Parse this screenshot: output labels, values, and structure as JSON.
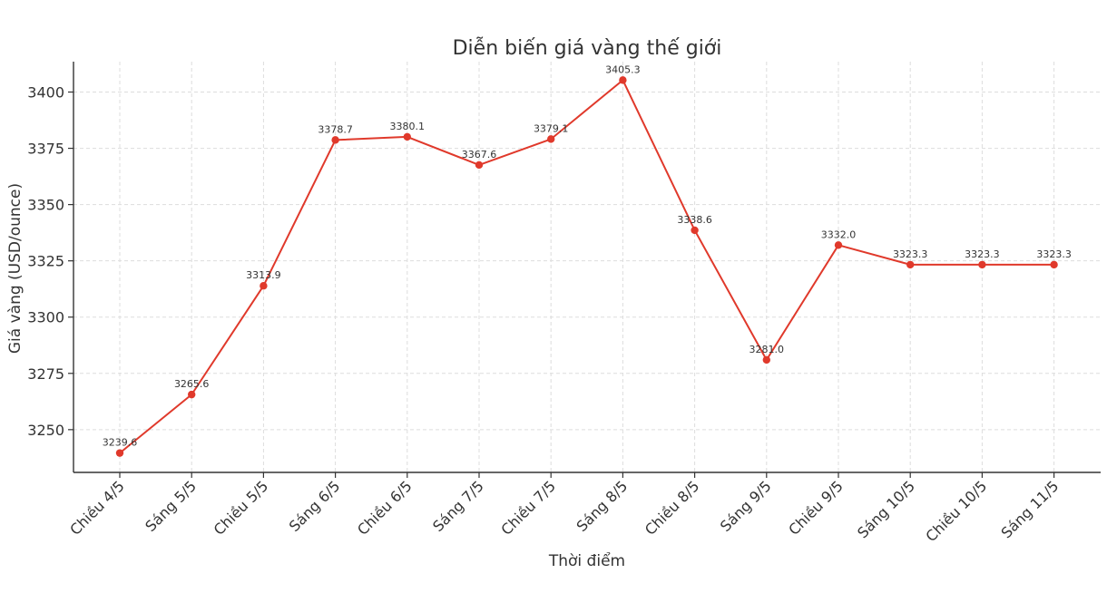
{
  "chart_data": {
    "type": "line",
    "title": "Diễn biến giá vàng thế giới",
    "xlabel": "Thời điểm",
    "ylabel": "Giá vàng (USD/ounce)",
    "categories": [
      "Chiều 4/5",
      "Sáng 5/5",
      "Chiều 5/5",
      "Sáng 6/5",
      "Chiều 6/5",
      "Sáng 7/5",
      "Chiều 7/5",
      "Sáng 8/5",
      "Chiều 8/5",
      "Sáng 9/5",
      "Chiều 9/5",
      "Sáng 10/5",
      "Chiều 10/5",
      "Sáng 11/5"
    ],
    "series": [
      {
        "values": [
          3239.6,
          3265.6,
          3313.9,
          3378.7,
          3380.1,
          3367.6,
          3379.1,
          3405.3,
          3338.6,
          3281.0,
          3332.0,
          3323.3,
          3323.3,
          3323.3
        ],
        "labels": [
          "3239.6",
          "3265.6",
          "3313.9",
          "3378.7",
          "3380.1",
          "3367.6",
          "3379.1",
          "3405.3",
          "3338.6",
          "3281.0",
          "3332.0",
          "3323.3",
          "3323.3",
          "3323.3"
        ],
        "color": "#e0392b"
      }
    ],
    "yticks": [
      3250,
      3275,
      3300,
      3325,
      3350,
      3375,
      3400
    ],
    "ylim": [
      3231,
      3413.5
    ],
    "grid": true,
    "legend": "none"
  }
}
